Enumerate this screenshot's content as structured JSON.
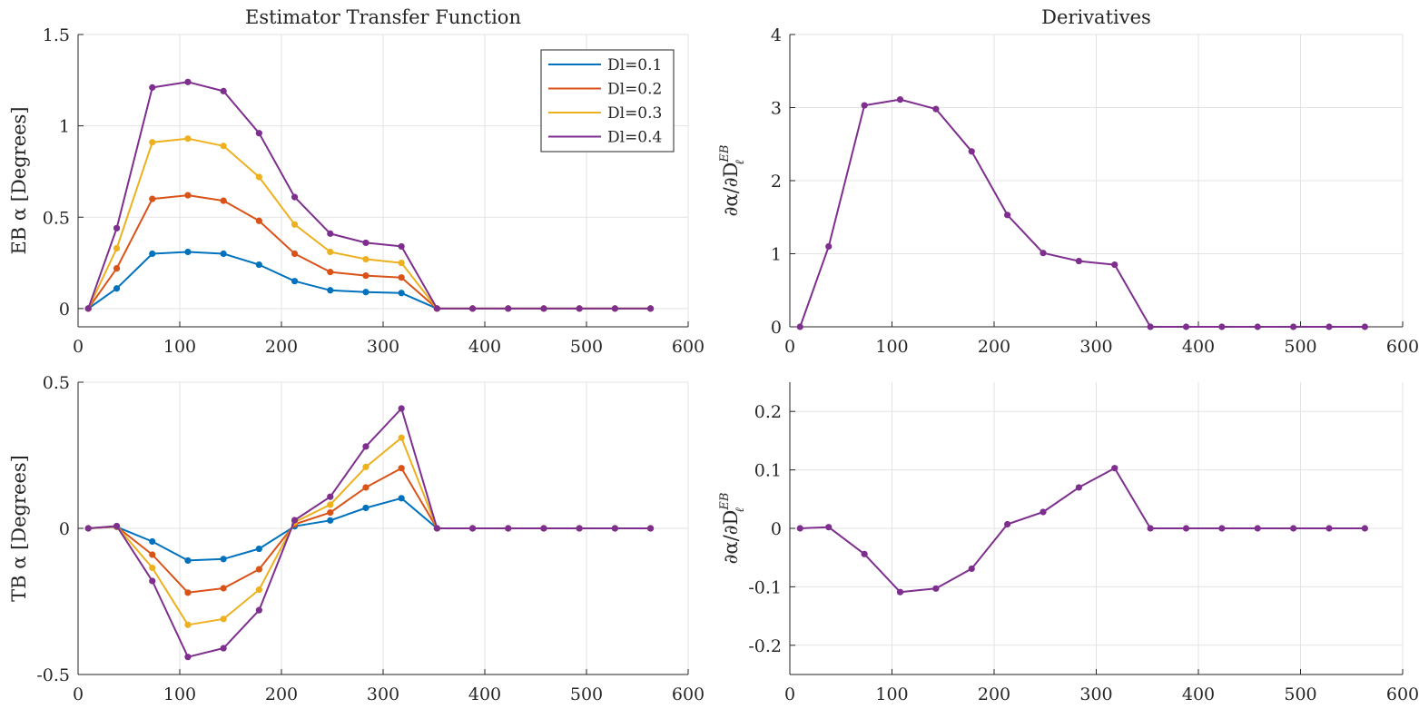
{
  "chart_data": [
    {
      "type": "line",
      "title": "Estimator Transfer Function",
      "xlabel": "",
      "ylabel": "EB α [Degrees]",
      "xlim": [
        0,
        600
      ],
      "ylim": [
        -0.1,
        1.5
      ],
      "xticks": [
        "0",
        "100",
        "200",
        "300",
        "400",
        "500",
        "600"
      ],
      "yticks": [
        "0",
        "0.5",
        "1",
        "1.5"
      ],
      "grid": true,
      "legend_position": "top-right",
      "x": [
        10,
        38,
        73,
        108,
        143,
        178,
        213,
        248,
        283,
        318,
        353,
        388,
        423,
        458,
        493,
        528,
        563
      ],
      "series": [
        {
          "name": "Dl=0.1",
          "color": "#0072BD",
          "values": [
            0,
            0.11,
            0.3,
            0.31,
            0.3,
            0.24,
            0.15,
            0.1,
            0.09,
            0.085,
            0,
            0,
            0,
            0,
            0,
            0,
            0
          ]
        },
        {
          "name": "Dl=0.2",
          "color": "#D95319",
          "values": [
            0,
            0.22,
            0.6,
            0.62,
            0.59,
            0.48,
            0.3,
            0.2,
            0.18,
            0.17,
            0,
            0,
            0,
            0,
            0,
            0,
            0
          ]
        },
        {
          "name": "Dl=0.3",
          "color": "#EDB120",
          "values": [
            0,
            0.33,
            0.91,
            0.93,
            0.89,
            0.72,
            0.46,
            0.31,
            0.27,
            0.25,
            0,
            0,
            0,
            0,
            0,
            0,
            0
          ]
        },
        {
          "name": "Dl=0.4",
          "color": "#7E2F8E",
          "values": [
            0,
            0.44,
            1.21,
            1.24,
            1.19,
            0.96,
            0.61,
            0.41,
            0.36,
            0.34,
            0,
            0,
            0,
            0,
            0,
            0,
            0
          ]
        }
      ]
    },
    {
      "type": "line",
      "title": "Derivatives",
      "xlabel": "",
      "ylabel": "∂α/∂D",
      "ylabel_sup": "EB",
      "ylabel_sub": "ℓ",
      "xlim": [
        0,
        600
      ],
      "ylim": [
        0,
        4
      ],
      "xticks": [
        "0",
        "100",
        "200",
        "300",
        "400",
        "500",
        "600"
      ],
      "yticks": [
        "0",
        "1",
        "2",
        "3",
        "4"
      ],
      "grid": true,
      "x": [
        10,
        38,
        73,
        108,
        143,
        178,
        213,
        248,
        283,
        318,
        353,
        388,
        423,
        458,
        493,
        528,
        563
      ],
      "series": [
        {
          "color": "#7E2F8E",
          "values": [
            0,
            1.1,
            3.03,
            3.11,
            2.98,
            2.4,
            1.53,
            1.01,
            0.9,
            0.85,
            0,
            0,
            0,
            0,
            0,
            0,
            0
          ]
        }
      ]
    },
    {
      "type": "line",
      "title": "",
      "xlabel": "",
      "ylabel": "TB α [Degrees]",
      "xlim": [
        0,
        600
      ],
      "ylim": [
        -0.5,
        0.5
      ],
      "xticks": [
        "0",
        "100",
        "200",
        "300",
        "400",
        "500",
        "600"
      ],
      "yticks": [
        "-0.5",
        "0",
        "0.5"
      ],
      "grid": true,
      "x": [
        10,
        38,
        73,
        108,
        143,
        178,
        213,
        248,
        283,
        318,
        353,
        388,
        423,
        458,
        493,
        528,
        563
      ],
      "series": [
        {
          "color": "#0072BD",
          "values": [
            0,
            0.005,
            -0.045,
            -0.11,
            -0.105,
            -0.07,
            0.007,
            0.027,
            0.07,
            0.103,
            0,
            0,
            0,
            0,
            0,
            0,
            0
          ]
        },
        {
          "color": "#D95319",
          "values": [
            0,
            0.006,
            -0.09,
            -0.22,
            -0.205,
            -0.14,
            0.014,
            0.054,
            0.14,
            0.206,
            0,
            0,
            0,
            0,
            0,
            0,
            0
          ]
        },
        {
          "color": "#EDB120",
          "values": [
            0,
            0.007,
            -0.135,
            -0.33,
            -0.31,
            -0.21,
            0.021,
            0.081,
            0.21,
            0.31,
            0,
            0,
            0,
            0,
            0,
            0,
            0
          ]
        },
        {
          "color": "#7E2F8E",
          "values": [
            0,
            0.008,
            -0.18,
            -0.44,
            -0.41,
            -0.28,
            0.028,
            0.108,
            0.28,
            0.41,
            0,
            0,
            0,
            0,
            0,
            0,
            0
          ]
        }
      ]
    },
    {
      "type": "line",
      "title": "",
      "xlabel": "",
      "ylabel": "∂α/∂D",
      "ylabel_sup": "EB",
      "ylabel_sub": "ℓ",
      "xlim": [
        0,
        600
      ],
      "ylim": [
        -0.25,
        0.25
      ],
      "xticks": [
        "0",
        "100",
        "200",
        "300",
        "400",
        "500",
        "600"
      ],
      "yticks": [
        "-0.2",
        "-0.1",
        "0",
        "0.1",
        "0.2"
      ],
      "grid": true,
      "x": [
        10,
        38,
        73,
        108,
        143,
        178,
        213,
        248,
        283,
        318,
        353,
        388,
        423,
        458,
        493,
        528,
        563
      ],
      "series": [
        {
          "color": "#7E2F8E",
          "values": [
            0,
            0.002,
            -0.044,
            -0.109,
            -0.103,
            -0.069,
            0.007,
            0.028,
            0.07,
            0.103,
            0,
            0,
            0,
            0,
            0,
            0,
            0
          ]
        }
      ]
    }
  ]
}
